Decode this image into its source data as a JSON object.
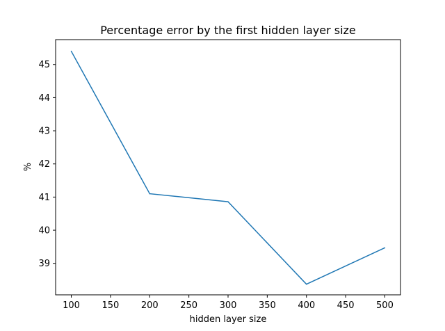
{
  "chart_data": {
    "type": "line",
    "title": "Percentage error by the first hidden layer size",
    "xlabel": "hidden layer size",
    "ylabel": "%",
    "xlim": [
      80,
      520
    ],
    "ylim": [
      38.05,
      45.75
    ],
    "xticks": [
      100,
      150,
      200,
      250,
      300,
      350,
      400,
      450,
      500
    ],
    "yticks": [
      39,
      40,
      41,
      42,
      43,
      44,
      45
    ],
    "grid": false,
    "series": [
      {
        "color": "#1f77b4",
        "x": [
          100,
          200,
          300,
          400,
          500
        ],
        "y": [
          45.4,
          41.1,
          40.86,
          38.37,
          39.47
        ]
      }
    ]
  }
}
